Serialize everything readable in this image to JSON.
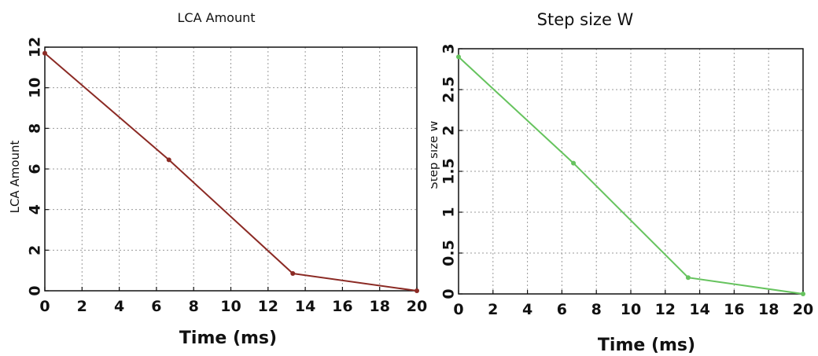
{
  "chart_data": [
    {
      "type": "line",
      "title": "LCA Amount",
      "xlabel": "Time (ms)",
      "ylabel": "LCA Amount",
      "xlim": [
        0,
        20
      ],
      "ylim": [
        0,
        12
      ],
      "xticks": [
        "0",
        "2",
        "4",
        "6",
        "8",
        "10",
        "12",
        "14",
        "16",
        "18",
        "20"
      ],
      "yticks": [
        "0",
        "2",
        "4",
        "6",
        "8",
        "10",
        "12"
      ],
      "grid": true,
      "series": [
        {
          "color": "#8b2a24",
          "x": [
            0,
            6.67,
            13.33,
            20
          ],
          "y": [
            11.7,
            6.45,
            0.85,
            0
          ]
        }
      ]
    },
    {
      "type": "line",
      "title": "Step size W",
      "xlabel": "Time (ms)",
      "ylabel": "Step size W",
      "xlim": [
        0,
        20
      ],
      "ylim": [
        0,
        3
      ],
      "xticks": [
        "0",
        "2",
        "4",
        "6",
        "8",
        "10",
        "12",
        "14",
        "16",
        "18",
        "20"
      ],
      "yticks": [
        "0",
        "0.5",
        "1",
        "1.5",
        "2",
        "2.5",
        "3"
      ],
      "grid": true,
      "series": [
        {
          "color": "#66c35e",
          "x": [
            0,
            6.67,
            13.33,
            20
          ],
          "y": [
            2.9,
            1.6,
            0.2,
            0
          ]
        }
      ]
    }
  ]
}
